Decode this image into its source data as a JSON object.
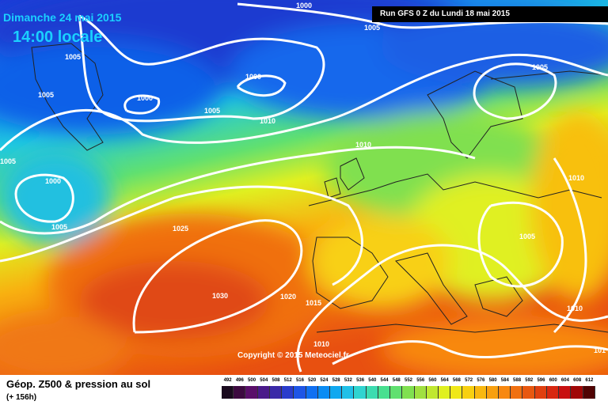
{
  "header": {
    "date_label": "Dimanche 24 mai 2015",
    "time_label": "14:00 locale",
    "run_label": "Run GFS 0 Z du Lundi 18 mai 2015"
  },
  "footer": {
    "copyright": "Copyright © 2015 Meteociel.fr",
    "parameter_title": "Géop. Z500 & pression au sol",
    "forecast_hour": "(+ 156h)"
  },
  "isobars": [
    {
      "label": "1000"
    },
    {
      "label": "1005"
    },
    {
      "label": "1005"
    },
    {
      "label": "1005"
    },
    {
      "label": "1000"
    },
    {
      "label": "1000"
    },
    {
      "label": "1005"
    },
    {
      "label": "1010"
    },
    {
      "label": "1005"
    },
    {
      "label": "1010"
    },
    {
      "label": "1005"
    },
    {
      "label": "1000"
    },
    {
      "label": "1005"
    },
    {
      "label": "1025"
    },
    {
      "label": "1030"
    },
    {
      "label": "1020"
    },
    {
      "label": "1015"
    },
    {
      "label": "1010"
    },
    {
      "label": "1010"
    },
    {
      "label": "1005"
    },
    {
      "label": "1010"
    },
    {
      "label": "101"
    }
  ],
  "legend": {
    "ticks": [
      "492",
      "496",
      "500",
      "504",
      "508",
      "512",
      "516",
      "520",
      "524",
      "528",
      "532",
      "536",
      "540",
      "544",
      "548",
      "552",
      "556",
      "560",
      "564",
      "568",
      "572",
      "576",
      "580",
      "584",
      "588",
      "592",
      "596",
      "600",
      "604",
      "608",
      "612"
    ],
    "colors": [
      "#1a0a1e",
      "#3d0a40",
      "#5a0f6a",
      "#4a1a8a",
      "#3a2aa8",
      "#2a3ccc",
      "#1e55e6",
      "#1070f2",
      "#0a8cf4",
      "#10a8f0",
      "#20c0e8",
      "#30d4d0",
      "#3cdcb0",
      "#48e090",
      "#60e070",
      "#80e050",
      "#a0e040",
      "#c0e830",
      "#e0f020",
      "#f0e818",
      "#f8d010",
      "#f8b810",
      "#f8a010",
      "#f88810",
      "#f07010",
      "#e85810",
      "#e04010",
      "#d82810",
      "#c81010",
      "#a00808",
      "#500404"
    ]
  }
}
